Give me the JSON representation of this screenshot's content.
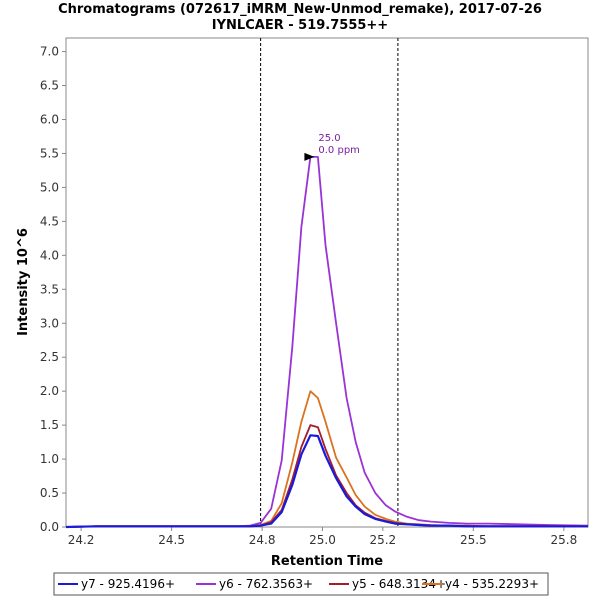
{
  "chart_data": {
    "type": "line",
    "title": "Chromatograms (072617_iMRM_New-Unmod_remake), 2017-07-26",
    "subtitle": "IYNLCAER - 519.7555++",
    "xlabel": "Retention Time",
    "ylabel": "Intensity 10^6",
    "xlim": [
      24.15,
      25.88
    ],
    "ylim": [
      0,
      7.2
    ],
    "x_ticks": [
      "24.2",
      "24.5",
      "24.8",
      "25.0",
      "25.2",
      "25.5",
      "25.8"
    ],
    "y_ticks": [
      "0.0",
      "0.5",
      "1.0",
      "1.5",
      "2.0",
      "2.5",
      "3.0",
      "3.5",
      "4.0",
      "4.5",
      "5.0",
      "5.5",
      "6.0",
      "6.5",
      "7.0"
    ],
    "boundaries": [
      24.795,
      25.25
    ],
    "annotation": {
      "x": 24.96,
      "y": 5.45,
      "line1": "25.0",
      "line2": "0.0 ppm",
      "color": "#7b1fa2"
    },
    "legend_position": "bottom",
    "colors": {
      "y7": "#1a1adc",
      "y6": "#9a33d6",
      "y5": "#a51c2a",
      "y4": "#d9731f"
    },
    "x": [
      24.15,
      24.25,
      24.35,
      24.45,
      24.55,
      24.65,
      24.72,
      24.76,
      24.795,
      24.83,
      24.865,
      24.9,
      24.93,
      24.96,
      24.985,
      25.01,
      25.045,
      25.08,
      25.11,
      25.14,
      25.175,
      25.21,
      25.24,
      25.28,
      25.32,
      25.36,
      25.42,
      25.48,
      25.55,
      25.65,
      25.75,
      25.88
    ],
    "series": [
      {
        "name": "y7 - 925.4196+",
        "key": "y7",
        "values": [
          0,
          0.01,
          0.01,
          0.01,
          0.01,
          0.01,
          0.01,
          0.01,
          0.02,
          0.05,
          0.22,
          0.62,
          1.07,
          1.35,
          1.34,
          1.05,
          0.72,
          0.45,
          0.3,
          0.19,
          0.12,
          0.08,
          0.05,
          0.04,
          0.03,
          0.02,
          0.02,
          0.01,
          0.01,
          0.01,
          0.01,
          0.01
        ]
      },
      {
        "name": "y6 - 762.3563+",
        "key": "y6",
        "values": [
          0,
          0.01,
          0.01,
          0.01,
          0.01,
          0.01,
          0.01,
          0.02,
          0.06,
          0.27,
          0.98,
          2.65,
          4.42,
          5.45,
          5.45,
          4.15,
          3.0,
          1.9,
          1.25,
          0.8,
          0.5,
          0.32,
          0.23,
          0.15,
          0.1,
          0.08,
          0.06,
          0.05,
          0.05,
          0.04,
          0.03,
          0.02
        ]
      },
      {
        "name": "y5 - 648.3134+",
        "key": "y5",
        "values": [
          0,
          0.01,
          0.01,
          0.01,
          0.01,
          0.01,
          0.01,
          0.01,
          0.02,
          0.07,
          0.25,
          0.7,
          1.18,
          1.5,
          1.47,
          1.15,
          0.76,
          0.5,
          0.32,
          0.21,
          0.13,
          0.09,
          0.06,
          0.04,
          0.03,
          0.02,
          0.02,
          0.01,
          0.01,
          0.01,
          0.01,
          0.01
        ]
      },
      {
        "name": "y4 - 535.2293+",
        "key": "y4",
        "values": [
          0,
          0.01,
          0.01,
          0.01,
          0.01,
          0.01,
          0.01,
          0.01,
          0.03,
          0.09,
          0.35,
          0.95,
          1.55,
          2.0,
          1.9,
          1.55,
          1.02,
          0.73,
          0.47,
          0.3,
          0.18,
          0.12,
          0.08,
          0.05,
          0.04,
          0.03,
          0.02,
          0.02,
          0.01,
          0.01,
          0.01,
          0.01
        ]
      }
    ]
  }
}
